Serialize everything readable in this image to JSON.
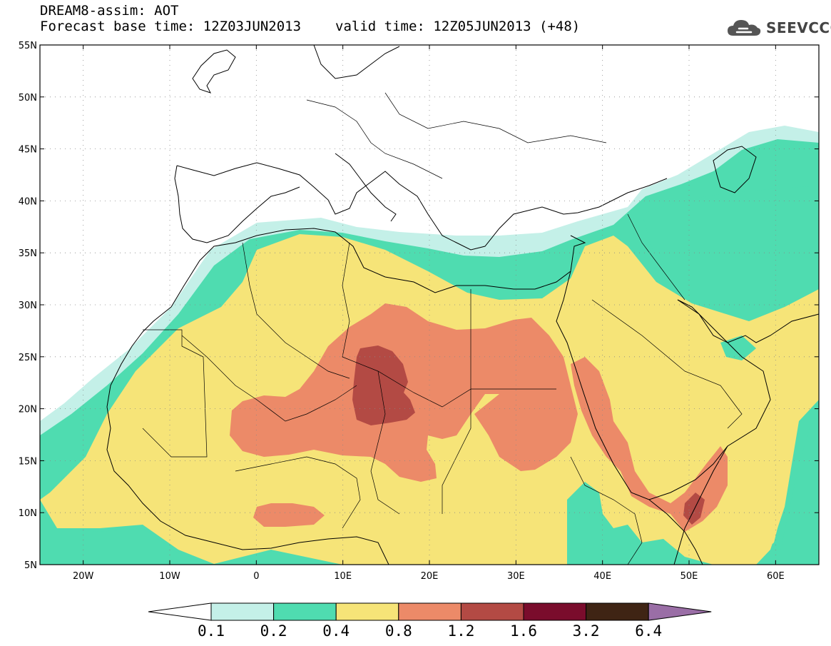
{
  "header": {
    "title": "DREAM8-assim: AOT",
    "base_label": "Forecast base time: 12Z03JUN2013",
    "valid_label": "valid time: 12Z05JUN2013 (+48)"
  },
  "logo": {
    "text": "SEEVCCC",
    "icon": "cloud-icon"
  },
  "map": {
    "variable": "AOT",
    "projection": "lat-lon",
    "lon_range": [
      -25,
      65
    ],
    "lat_range": [
      5,
      55
    ],
    "lat_ticks": [
      "55N",
      "50N",
      "45N",
      "40N",
      "35N",
      "30N",
      "25N",
      "20N",
      "15N",
      "10N",
      "5N"
    ],
    "lon_ticks": [
      "20W",
      "10W",
      "0",
      "10E",
      "20E",
      "30E",
      "40E",
      "50E",
      "60E"
    ],
    "grid": "dotted"
  },
  "colorbar": {
    "thresholds": [
      "0.1",
      "0.2",
      "0.4",
      "0.8",
      "1.2",
      "1.6",
      "3.2",
      "6.4"
    ],
    "colors": [
      "#c4f0e8",
      "#4fdcb0",
      "#f6e478",
      "#ec8a68",
      "#b34a44",
      "#7a0c2c",
      "#3f2414",
      "#9a6ea6"
    ],
    "under_color": "#ffffff"
  }
}
